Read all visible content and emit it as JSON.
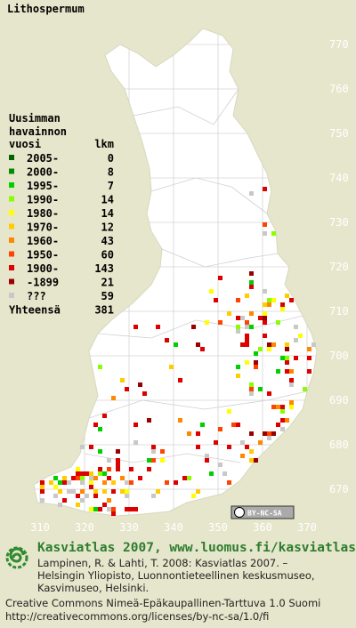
{
  "title": "Lithospermum",
  "legend": {
    "heading": [
      "Uusimman",
      "havainnon",
      "vuosi"
    ],
    "count_heading": "lkm",
    "rows": [
      {
        "label": "2005-",
        "count": 0,
        "color": "#006400"
      },
      {
        "label": "2000-",
        "count": 8,
        "color": "#008c00"
      },
      {
        "label": "1995-",
        "count": 7,
        "color": "#00d000"
      },
      {
        "label": "1990-",
        "count": 14,
        "color": "#88ff00"
      },
      {
        "label": "1980-",
        "count": 14,
        "color": "#ffff00"
      },
      {
        "label": "1970-",
        "count": 12,
        "color": "#ffcc00"
      },
      {
        "label": "1960-",
        "count": 43,
        "color": "#ff8800"
      },
      {
        "label": "1950-",
        "count": 60,
        "color": "#ff4400"
      },
      {
        "label": "1900-",
        "count": 143,
        "color": "#dd0000"
      },
      {
        "label": "-1899",
        "count": 21,
        "color": "#990000"
      },
      {
        "label": "???",
        "count": 59,
        "color": "#c8c8c8"
      }
    ],
    "total_label": "Yhteensä",
    "total": 381
  },
  "grid": {
    "y_labels": [
      770,
      760,
      750,
      740,
      730,
      720,
      710,
      700,
      690,
      680,
      670
    ],
    "x_labels": [
      310,
      320,
      330,
      340,
      350,
      360,
      370
    ]
  },
  "badge": "BY-NC-SA",
  "footer": {
    "heading": "Kasviatlas 2007, www.luomus.fi/kasviatlas",
    "citation": [
      "Lampinen, R. & Lahti, T. 2008: Kasviatlas 2007. –",
      "Helsingin Yliopisto, Luonnontieteellinen keskusmuseo,",
      "Kasvimuseo, Helsinki."
    ],
    "license": [
      "Creative Commons Nimeä-Epäkaupallinen-Tarttuva 1.0 Suomi",
      "http://creativecommons.org/licenses/by-nc-sa/1.0/fi"
    ]
  }
}
